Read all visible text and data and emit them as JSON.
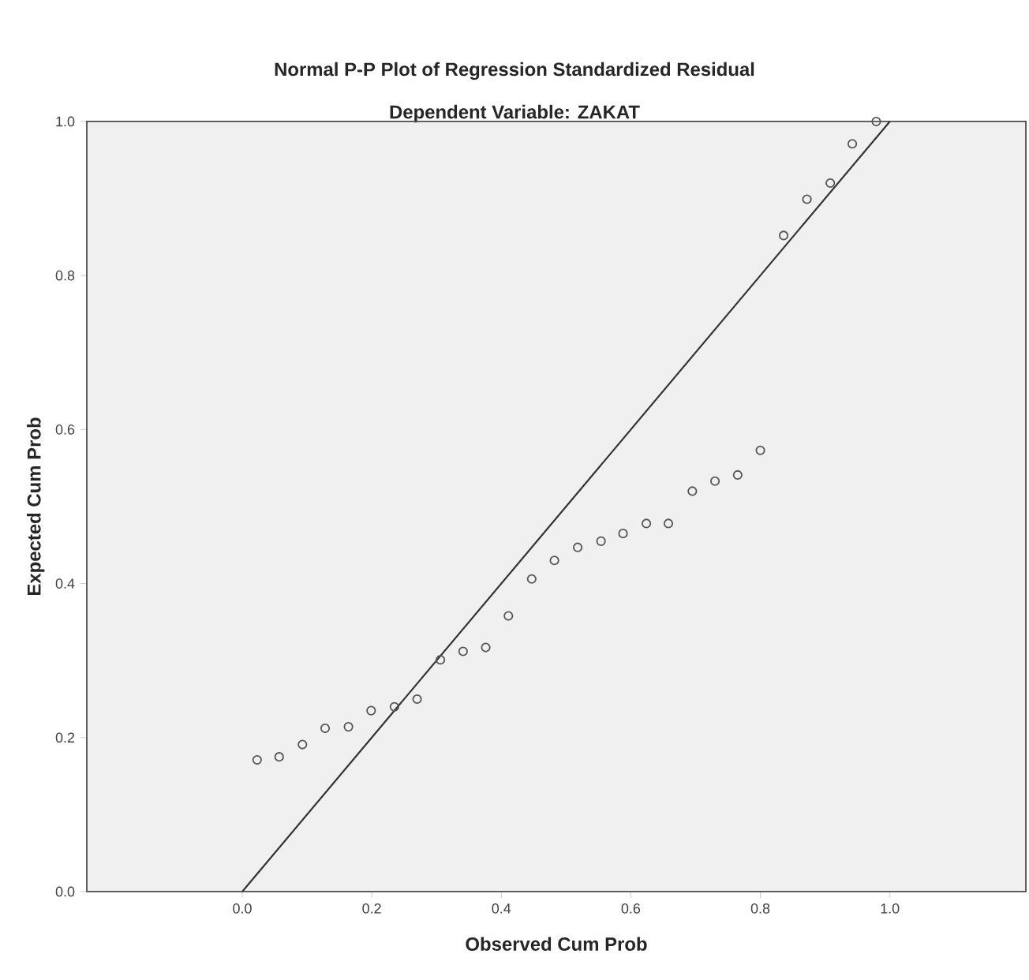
{
  "chart_data": {
    "type": "scatter",
    "title": "Normal P-P Plot of Regression Standardized Residual",
    "subtitle": "Dependent Variable: ZAKAT",
    "xlabel": "Observed Cum Prob",
    "ylabel": "Expected Cum Prob",
    "xlim": [
      -0.24,
      1.21
    ],
    "ylim": [
      0,
      1
    ],
    "xticks": [
      {
        "value": 0,
        "label": "0.0"
      },
      0.2,
      0.4,
      0.6,
      0.8,
      {
        "value": 1,
        "label": "1.0"
      }
    ],
    "yticks": [
      {
        "value": 0,
        "label": "0.0"
      },
      0.2,
      0.4,
      0.6,
      0.8,
      {
        "value": 1,
        "label": "1.0"
      }
    ],
    "series": [
      {
        "marker": "circle",
        "color": "#555555",
        "x": [
          0.023,
          0.057,
          0.093,
          0.128,
          0.164,
          0.199,
          0.235,
          0.27,
          0.306,
          0.341,
          0.376,
          0.411,
          0.447,
          0.482,
          0.518,
          0.554,
          0.588,
          0.624,
          0.658,
          0.695,
          0.73,
          0.765,
          0.8,
          0.836,
          0.872,
          0.908,
          0.942,
          0.979
        ],
        "values": [
          0.171,
          0.175,
          0.191,
          0.212,
          0.214,
          0.235,
          0.24,
          0.25,
          0.301,
          0.312,
          0.317,
          0.358,
          0.406,
          0.43,
          0.447,
          0.455,
          0.465,
          0.478,
          0.478,
          0.52,
          0.533,
          0.541,
          0.573,
          0.852,
          0.899,
          0.92,
          0.971,
          1.0
        ]
      },
      {
        "type": "line",
        "line_style": "solid",
        "color": "#333333",
        "x": [
          0,
          1
        ],
        "values": [
          0,
          1
        ]
      }
    ]
  }
}
